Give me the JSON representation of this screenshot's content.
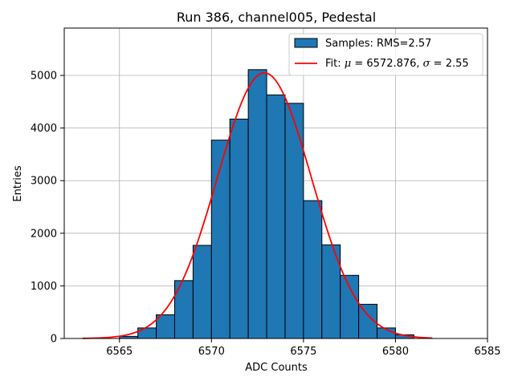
{
  "chart_data": {
    "type": "bar",
    "title": "Run 386, channel005, Pedestal",
    "xlabel": "ADC Counts",
    "ylabel": "Entries",
    "xlim": [
      6562,
      6585
    ],
    "ylim": [
      0,
      5900
    ],
    "x_ticks": [
      6565,
      6570,
      6575,
      6580,
      6585
    ],
    "y_ticks": [
      0,
      1000,
      2000,
      3000,
      4000,
      5000
    ],
    "grid": true,
    "legend_position": "top-right",
    "bar_color": "#1f77b4",
    "fit_color": "#ff0000",
    "bins": {
      "edges": [
        6565,
        6566,
        6567,
        6568,
        6569,
        6570,
        6571,
        6572,
        6573,
        6574,
        6575,
        6576,
        6577,
        6578,
        6579,
        6580,
        6581
      ],
      "values": [
        40,
        200,
        450,
        1100,
        1770,
        3770,
        4170,
        5110,
        4630,
        4470,
        2620,
        1780,
        1200,
        650,
        200,
        70
      ]
    },
    "fit": {
      "mu": 6572.876,
      "sigma": 2.55,
      "amplitude": 5050,
      "x_range": [
        6563,
        6582
      ]
    },
    "legend": {
      "samples_label": "Samples: RMS=2.57",
      "fit_prefix": "Fit: ",
      "fit_mu_symbol": "μ",
      "fit_mu_value": " = 6572.876, ",
      "fit_sigma_symbol": "σ",
      "fit_sigma_value": " = 2.55"
    }
  }
}
